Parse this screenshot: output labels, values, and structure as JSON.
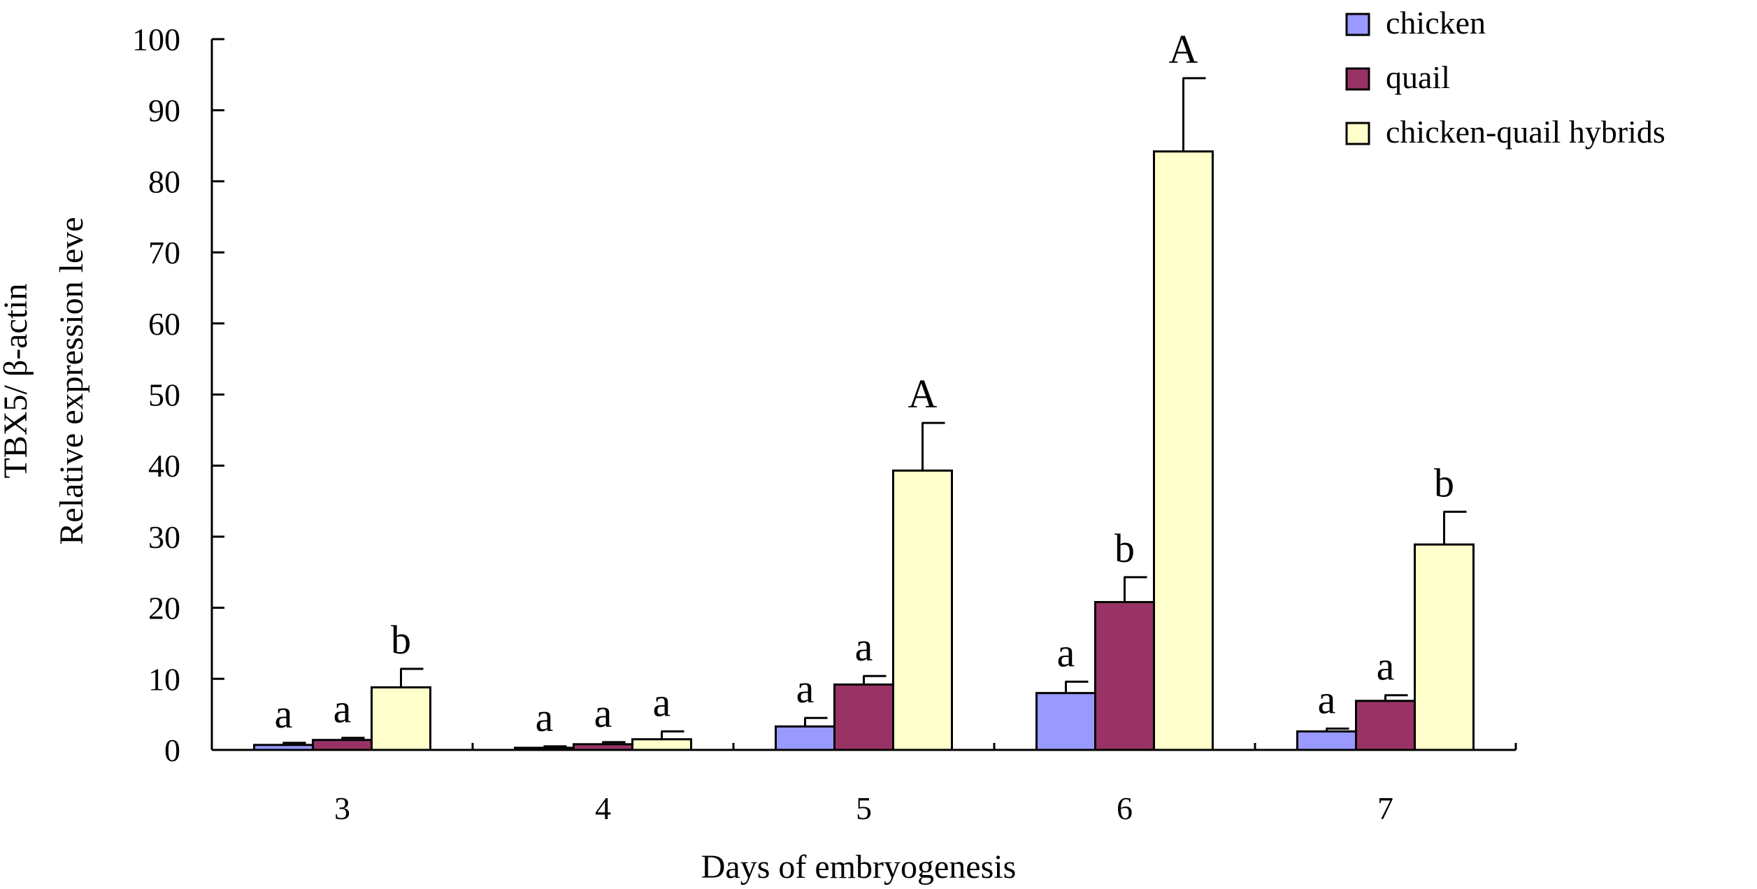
{
  "chart_data": {
    "type": "bar",
    "title": "",
    "xlabel": "Days of embryogenesis",
    "ylabel_lines": [
      "TBX5/ β-actin",
      "Relative expression leve"
    ],
    "ylim": [
      0,
      100
    ],
    "yticks": [
      "0",
      "10",
      "20",
      "30",
      "40",
      "50",
      "60",
      "70",
      "80",
      "90",
      "100"
    ],
    "categories": [
      "3",
      "4",
      "5",
      "6",
      "7"
    ],
    "series": [
      {
        "name": "chicken",
        "color": "#9999ff",
        "values": [
          0.7,
          0.3,
          3.3,
          8.0,
          2.6
        ],
        "errors": [
          0.3,
          0.2,
          1.2,
          1.6,
          0.4
        ],
        "labels": [
          "a",
          "a",
          "a",
          "a",
          "a"
        ]
      },
      {
        "name": "quail",
        "color": "#993366",
        "values": [
          1.4,
          0.8,
          9.2,
          20.8,
          6.9
        ],
        "errors": [
          0.3,
          0.3,
          1.2,
          3.5,
          0.8
        ],
        "labels": [
          "a",
          "a",
          "a",
          "b",
          "a"
        ]
      },
      {
        "name": "chicken-quail hybrids",
        "color": "#ffffcc",
        "values": [
          8.8,
          1.5,
          39.3,
          84.2,
          28.9
        ],
        "errors": [
          2.6,
          1.1,
          6.7,
          10.3,
          4.6
        ],
        "labels": [
          "b",
          "a",
          "A",
          "A",
          "b"
        ]
      }
    ],
    "legend_position": "top-right",
    "grid": false
  }
}
